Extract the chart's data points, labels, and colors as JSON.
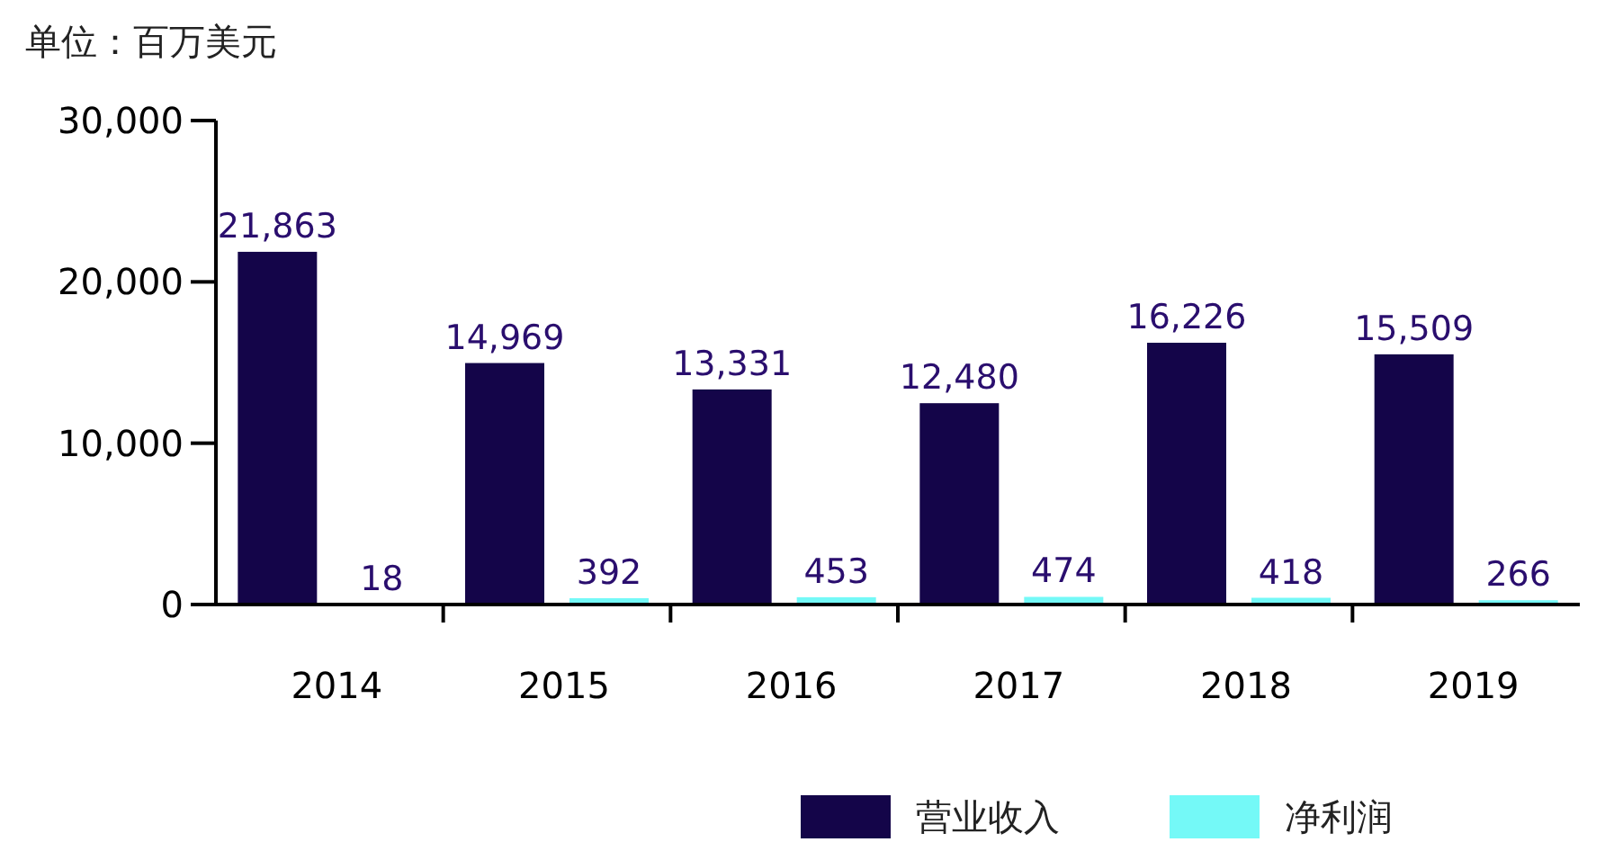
{
  "chart_data": {
    "type": "bar",
    "ylabel": "单位：百万美元",
    "categories": [
      "2014",
      "2015",
      "2016",
      "2017",
      "2018",
      "2019"
    ],
    "series": [
      {
        "name": "营业收入",
        "color": "#140549",
        "values": [
          21863,
          14969,
          13331,
          12480,
          16226,
          15509
        ],
        "value_labels": [
          "21,863",
          "14,969",
          "13,331",
          "12,480",
          "16,226",
          "15,509"
        ]
      },
      {
        "name": "净利润",
        "color": "#74f9f7",
        "values": [
          18,
          392,
          453,
          474,
          418,
          266
        ],
        "value_labels": [
          "18",
          "392",
          "453",
          "474",
          "418",
          "266"
        ]
      }
    ],
    "ylim": [
      0,
      30000
    ],
    "yticks": [
      {
        "value": 0,
        "label": "0"
      },
      {
        "value": 10000,
        "label": "10,000"
      },
      {
        "value": 20000,
        "label": "20,000"
      },
      {
        "value": 30000,
        "label": "30,000"
      }
    ],
    "legend": "bottom"
  }
}
